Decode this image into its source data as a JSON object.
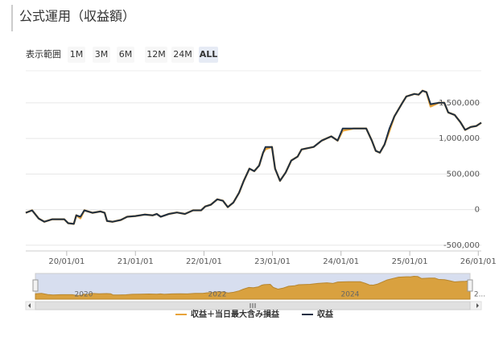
{
  "header": {
    "title": "公式運用（収益額）"
  },
  "range_selector": {
    "label": "表示範囲",
    "buttons": [
      "1M",
      "3M",
      "6M",
      "12M",
      "24M",
      "ALL"
    ],
    "selected_index": 5
  },
  "chart_data": {
    "type": "line",
    "x": [
      "2019-05-28",
      "2019-07-01",
      "2019-08-05",
      "2019-09-04",
      "2019-10-17",
      "2019-12-19",
      "2020-01-09",
      "2020-02-08",
      "2020-02-21",
      "2020-03-14",
      "2020-04-04",
      "2020-05-17",
      "2020-06-29",
      "2020-07-21",
      "2020-08-03",
      "2020-09-02",
      "2020-10-15",
      "2020-11-18",
      "2021-01-01",
      "2021-02-20",
      "2021-04-04",
      "2021-04-25",
      "2021-05-16",
      "2021-06-28",
      "2021-08-10",
      "2021-09-22",
      "2021-11-04",
      "2021-12-17",
      "2022-01-08",
      "2022-02-07",
      "2022-03-13",
      "2022-04-12",
      "2022-05-08",
      "2022-06-07",
      "2022-07-07",
      "2022-08-01",
      "2022-08-31",
      "2022-09-26",
      "2022-10-22",
      "2022-11-12",
      "2022-11-25",
      "2022-12-29",
      "2023-01-15",
      "2023-02-10",
      "2023-03-12",
      "2023-04-11",
      "2023-05-15",
      "2023-06-05",
      "2023-08-08",
      "2023-09-20",
      "2023-11-10",
      "2023-12-14",
      "2024-01-10",
      "2024-03-10",
      "2024-05-14",
      "2024-06-13",
      "2024-07-04",
      "2024-07-26",
      "2024-08-20",
      "2024-09-15",
      "2024-10-11",
      "2024-11-23",
      "2024-12-14",
      "2025-01-26",
      "2025-02-17",
      "2025-03-10",
      "2025-03-31",
      "2025-04-22",
      "2025-06-04",
      "2025-07-04",
      "2025-07-25",
      "2025-08-28",
      "2025-09-27",
      "2025-10-23",
      "2025-11-22",
      "2025-12-22",
      "2026-01-17"
    ],
    "series": [
      {
        "name": "収益＋当日最大含み損益",
        "color": "#e8a33a",
        "values": [
          -45000,
          -10000,
          -125000,
          -170000,
          -135000,
          -135000,
          -190000,
          -200000,
          -80000,
          -120000,
          -10000,
          -45000,
          -25000,
          -45000,
          -160000,
          -170000,
          -145000,
          -100000,
          -90000,
          -70000,
          -80000,
          -60000,
          -100000,
          -60000,
          -40000,
          -60000,
          -10000,
          -10000,
          45000,
          70000,
          145000,
          125000,
          35000,
          100000,
          235000,
          405000,
          575000,
          540000,
          620000,
          800000,
          850000,
          880000,
          575000,
          405000,
          520000,
          690000,
          745000,
          845000,
          880000,
          970000,
          1030000,
          970000,
          1110000,
          1140000,
          1140000,
          970000,
          825000,
          800000,
          915000,
          1110000,
          1310000,
          1500000,
          1590000,
          1625000,
          1615000,
          1670000,
          1650000,
          1450000,
          1500000,
          1500000,
          1365000,
          1330000,
          1230000,
          1120000,
          1160000,
          1175000,
          1220000
        ]
      },
      {
        "name": "収益",
        "color": "#1d2f44",
        "values": [
          -45000,
          -10000,
          -125000,
          -170000,
          -135000,
          -135000,
          -190000,
          -200000,
          -80000,
          -100000,
          -10000,
          -45000,
          -25000,
          -45000,
          -160000,
          -170000,
          -145000,
          -100000,
          -90000,
          -70000,
          -80000,
          -60000,
          -100000,
          -60000,
          -40000,
          -60000,
          -10000,
          -10000,
          45000,
          70000,
          145000,
          125000,
          35000,
          100000,
          235000,
          405000,
          575000,
          540000,
          620000,
          800000,
          880000,
          880000,
          575000,
          405000,
          520000,
          690000,
          745000,
          845000,
          880000,
          970000,
          1030000,
          970000,
          1140000,
          1140000,
          1140000,
          970000,
          825000,
          800000,
          915000,
          1140000,
          1310000,
          1500000,
          1590000,
          1625000,
          1615000,
          1670000,
          1650000,
          1480000,
          1500000,
          1500000,
          1365000,
          1330000,
          1230000,
          1120000,
          1160000,
          1175000,
          1220000
        ]
      }
    ],
    "xlim": [
      "2019-05-28",
      "2026-01-17"
    ],
    "xticks": [
      {
        "value": "2020-01-01",
        "label": "20/01/01"
      },
      {
        "value": "2021-01-01",
        "label": "21/01/01"
      },
      {
        "value": "2022-01-01",
        "label": "22/01/01"
      },
      {
        "value": "2023-01-01",
        "label": "23/01/01"
      },
      {
        "value": "2024-01-01",
        "label": "24/01/01"
      },
      {
        "value": "2025-01-01",
        "label": "25/01/01"
      },
      {
        "value": "2026-01-01",
        "label": "26/01/01"
      }
    ],
    "ylim": [
      -580000,
      1950000
    ],
    "yticks": [
      {
        "value": -500000,
        "label": "-500,000"
      },
      0,
      {
        "value": 500000,
        "label": "500,000"
      },
      {
        "value": 1000000,
        "label": "1,000,000"
      },
      {
        "value": 1500000,
        "label": "1,500,000"
      }
    ],
    "grid": true,
    "navigator_labels": [
      "2020",
      "2022",
      "2024",
      "2..."
    ]
  }
}
